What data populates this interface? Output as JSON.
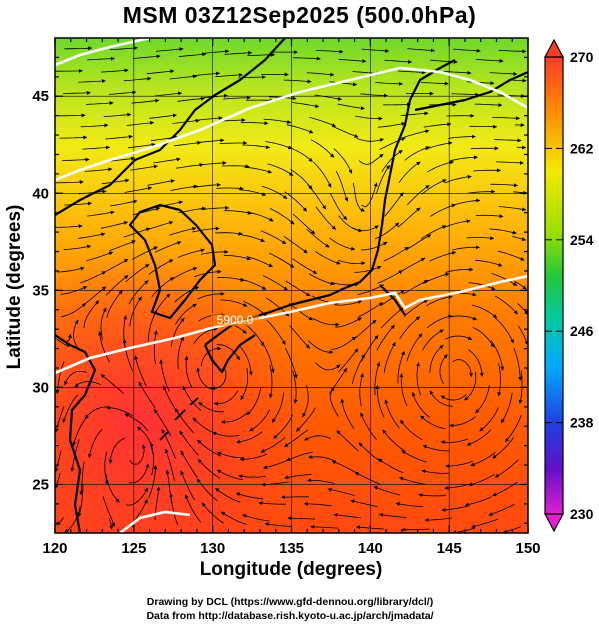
{
  "title": "MSM 03Z12Sep2025 (500.0hPa)",
  "axes": {
    "xlabel": "Longitude (degrees)",
    "ylabel": "Latitude  (degrees)",
    "xlim": [
      120,
      150
    ],
    "ylim": [
      22.5,
      48
    ],
    "xticks": [
      "120",
      "125",
      "130",
      "135",
      "140",
      "145",
      "150"
    ],
    "yticks": [
      "25",
      "30",
      "35",
      "40",
      "45"
    ]
  },
  "colorbar": {
    "min": 230,
    "max": 270,
    "ticks": [
      "270",
      "262",
      "254",
      "246",
      "238",
      "230"
    ]
  },
  "contour_label": "5900.0",
  "credits": {
    "line1": "Drawing by DCL (https://www.gfd-dennou.org/library/dcl/)",
    "line2": "Data from http://database.rish.kyoto-u.ac.jp/arch/jmadata/"
  },
  "colors": {
    "warm": "#ff2a00",
    "mid": "#ffb000",
    "cool": "#33cc33",
    "coastline": "#000000",
    "streamline": "#000000",
    "contour": "#ffffff"
  }
}
